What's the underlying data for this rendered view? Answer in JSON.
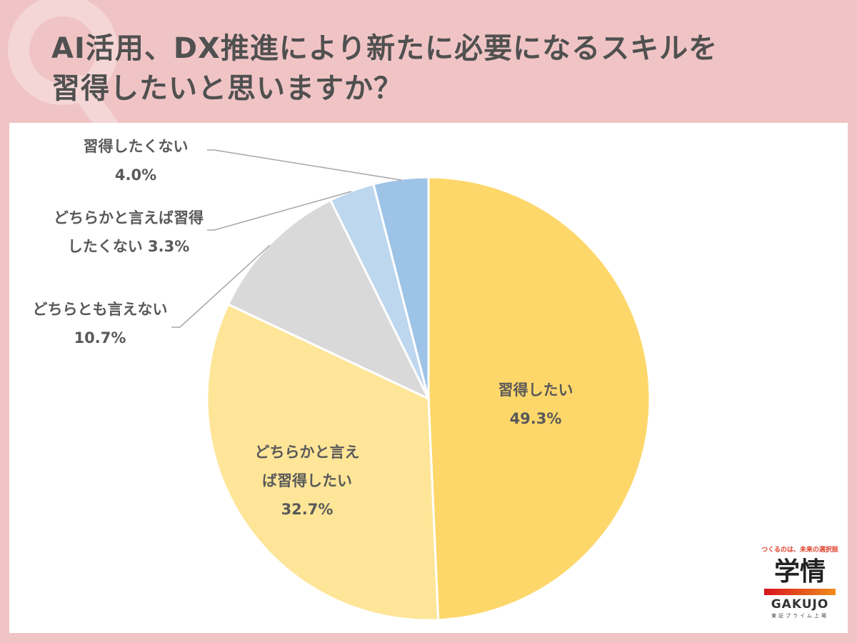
{
  "title_lines": [
    "AI活用、DX推進により新たに必要になるスキルを",
    "習得したいと思いますか？"
  ],
  "watermark": "Q",
  "chart_data": {
    "type": "pie",
    "title": "AI活用、DX推進により新たに必要になるスキルを習得したいと思いますか？",
    "slices": [
      {
        "label": "習得したい",
        "value": 49.3,
        "color": "#FDD76A"
      },
      {
        "label": "どちらかと言えば習得したい",
        "value": 32.7,
        "color": "#FEE598"
      },
      {
        "label": "どちらとも言えない",
        "value": 10.7,
        "color": "#D9D9D9"
      },
      {
        "label": "どちらかと言えば習得したくない",
        "value": 3.3,
        "color": "#BDD7EE"
      },
      {
        "label": "習得したくない",
        "value": 4.0,
        "color": "#9DC3E6"
      }
    ],
    "data_labels": [
      [
        "習得したい",
        "49.3%"
      ],
      [
        "どちらかと言え",
        "ば習得したい",
        "32.7%"
      ],
      [
        "どちらとも言えない",
        "10.7%"
      ],
      [
        "どちらかと言えば習得",
        "したくない 3.3%"
      ],
      [
        "習得したくない",
        "4.0%"
      ]
    ]
  },
  "logo": {
    "tagline": "つくるのは、未来の選択肢",
    "name": "学情",
    "roman": "GAKUJO",
    "sub": "東証プライム上場"
  }
}
